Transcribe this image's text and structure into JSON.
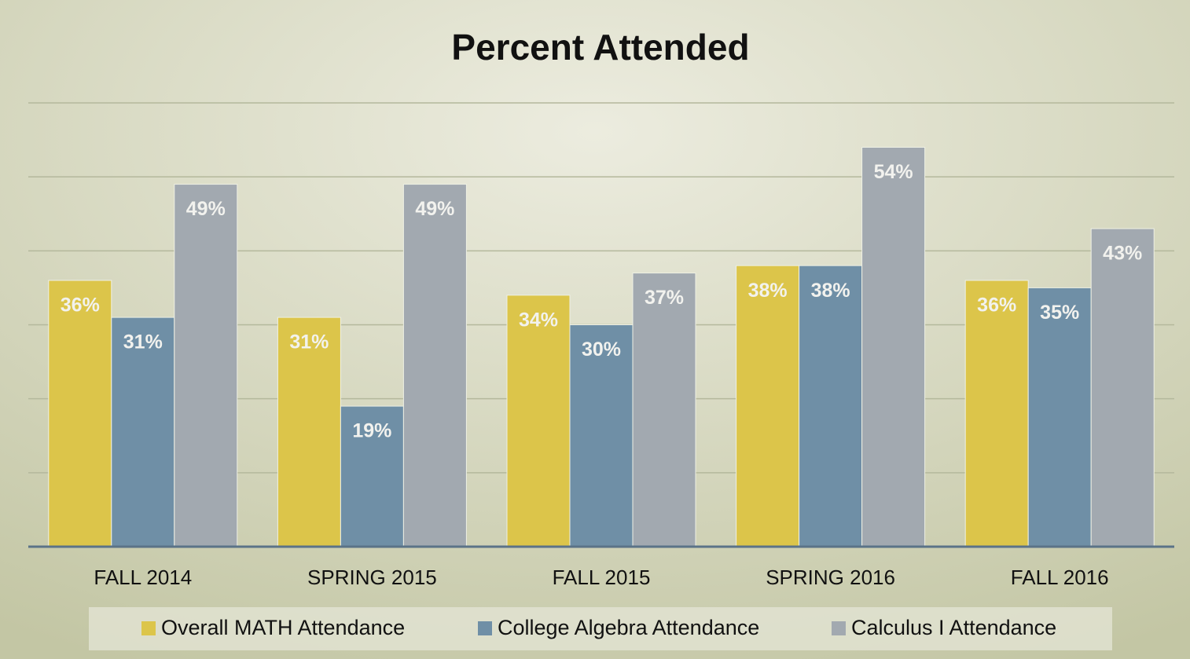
{
  "chart_data": {
    "type": "bar",
    "title": "Percent Attended",
    "categories": [
      "FALL 2014",
      "SPRING 2015",
      "FALL 2015",
      "SPRING 2016",
      "FALL 2016"
    ],
    "series": [
      {
        "name": "Overall MATH Attendance",
        "color": "#dcc54a",
        "values": [
          36,
          31,
          34,
          38,
          36
        ],
        "value_labels": [
          "36%",
          "31%",
          "34%",
          "38%",
          "36%"
        ]
      },
      {
        "name": "College Algebra Attendance",
        "color": "#6f8fa6",
        "values": [
          31,
          19,
          30,
          38,
          35
        ],
        "value_labels": [
          "31%",
          "19%",
          "30%",
          "38%",
          "35%"
        ]
      },
      {
        "name": "Calculus I Attendance",
        "color": "#a2a9b0",
        "values": [
          49,
          49,
          37,
          54,
          43
        ],
        "value_labels": [
          "49%",
          "49%",
          "37%",
          "54%",
          "43%"
        ]
      }
    ],
    "ylim": [
      0,
      60
    ],
    "yticks": [
      0,
      10,
      20,
      30,
      40,
      50,
      60
    ],
    "grid": true,
    "legend": "bottom"
  }
}
